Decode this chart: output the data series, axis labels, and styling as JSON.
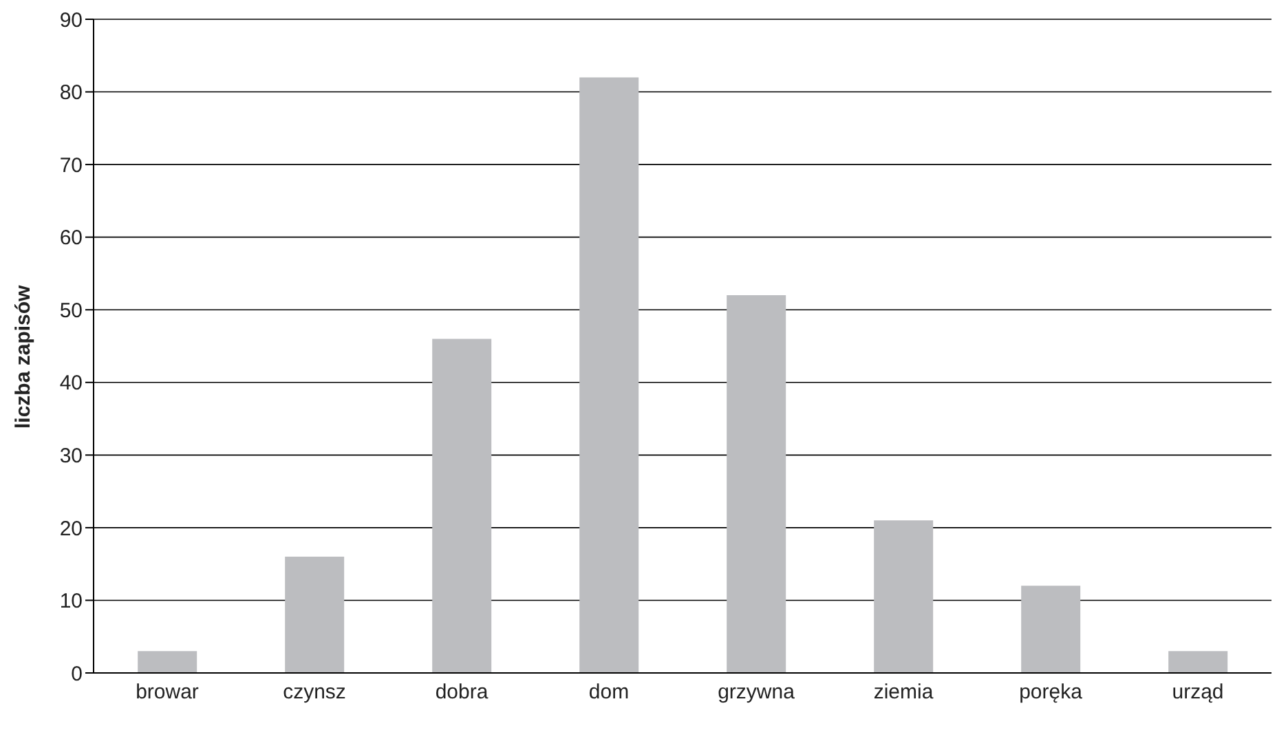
{
  "chart_data": {
    "type": "bar",
    "ylabel": "liczba zapisów",
    "categories": [
      "browar",
      "czynsz",
      "dobra",
      "dom",
      "grzywna",
      "ziemia",
      "poręka",
      "urząd"
    ],
    "values": [
      3,
      16,
      46,
      82,
      52,
      21,
      12,
      3
    ],
    "color": "#bcbdc0",
    "ylim": [
      0,
      90
    ],
    "yticks": [
      0,
      10,
      20,
      30,
      40,
      50,
      60,
      70,
      80,
      90
    ],
    "grid": "y"
  }
}
